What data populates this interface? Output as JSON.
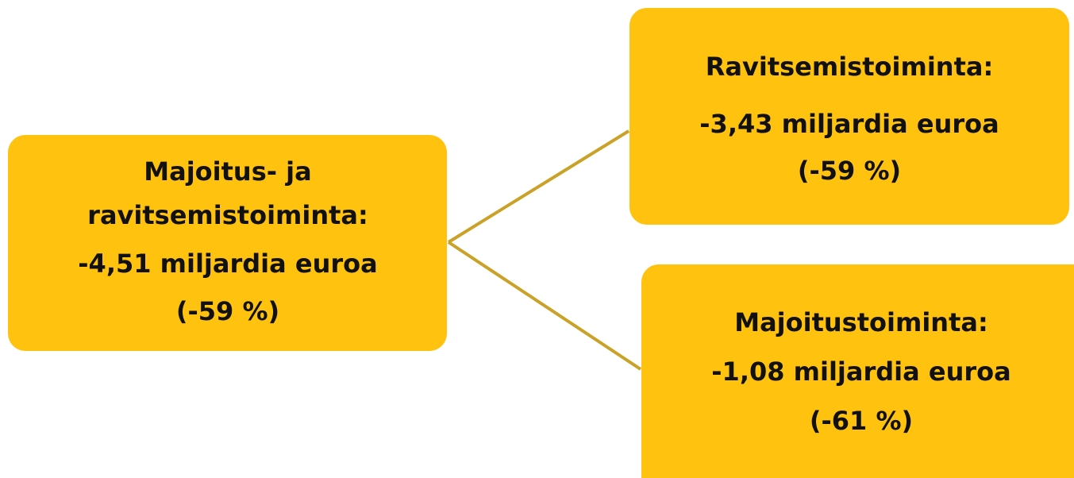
{
  "nodes": [
    {
      "lines": [
        "Majoitus- ja",
        "ravitsemistoiminta:",
        "-4,51 miljardia euroa",
        "(-59 %)"
      ]
    },
    {
      "lines": [
        "Ravitsemistoiminta:",
        "-3,43 miljardia euroa",
        "(-59 %)"
      ]
    },
    {
      "lines": [
        "Majoitustoiminta:",
        "-1,08 miljardia euroa",
        "(-61 %)"
      ]
    }
  ]
}
